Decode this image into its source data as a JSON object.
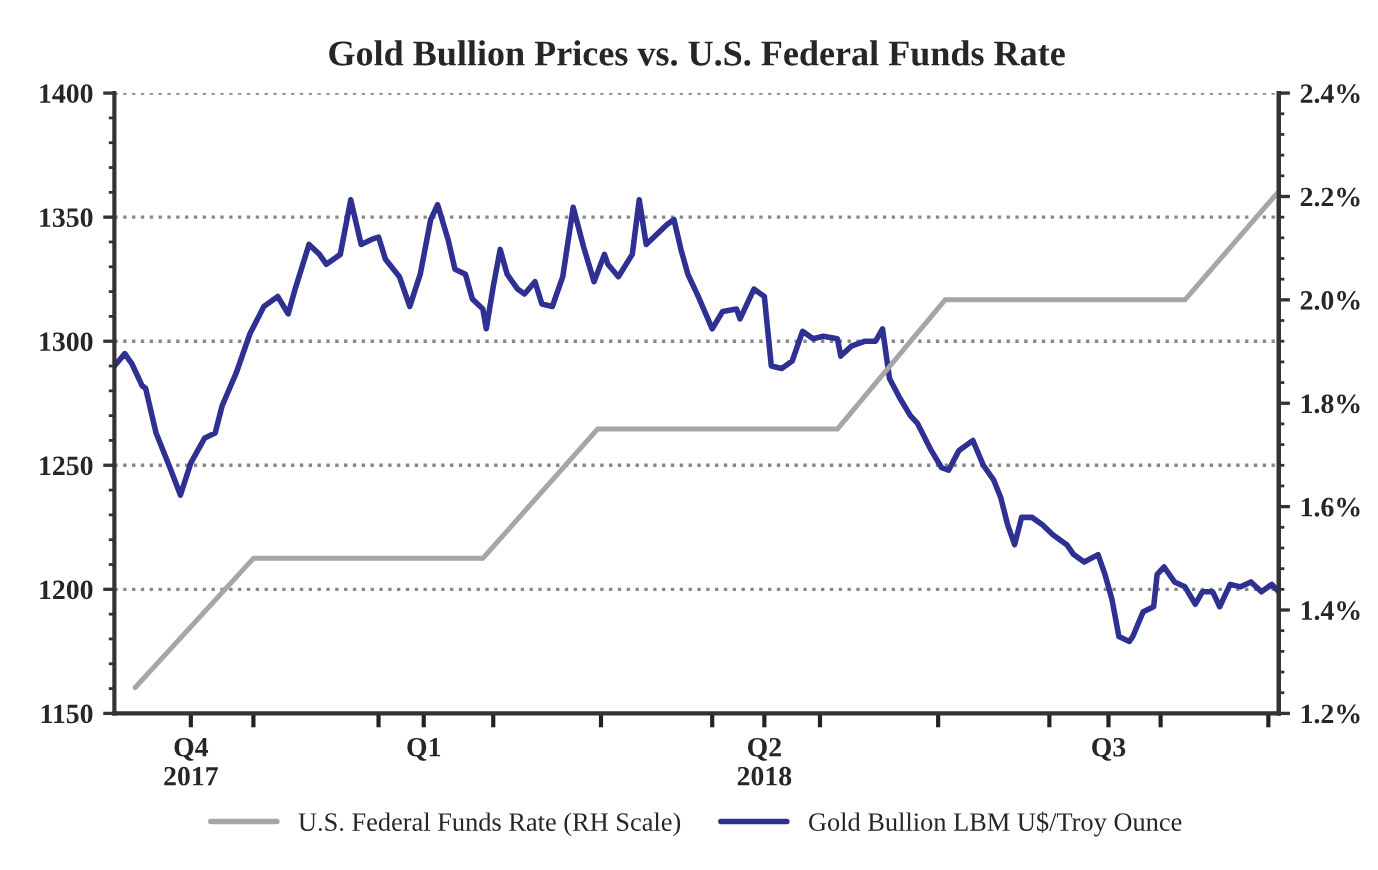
{
  "chart_data": {
    "type": "line",
    "title": "Gold Bullion Prices vs. U.S. Federal Funds Rate",
    "xlim": [
      "2017-10-01",
      "2018-09-01"
    ],
    "xticks": [
      {
        "value": "2017-10-23",
        "label": "Q4\n2017"
      },
      {
        "value": "2017-11-10",
        "label": null
      },
      {
        "value": "2017-12-16",
        "label": null
      },
      {
        "value": "2017-12-29",
        "label": "Q1"
      },
      {
        "value": "2018-01-18",
        "label": null
      },
      {
        "value": "2018-02-18",
        "label": null
      },
      {
        "value": "2018-03-22",
        "label": null
      },
      {
        "value": "2018-04-06",
        "label": "Q2\n2018"
      },
      {
        "value": "2018-04-22",
        "label": null
      },
      {
        "value": "2018-05-26",
        "label": null
      },
      {
        "value": "2018-06-27",
        "label": null
      },
      {
        "value": "2018-07-14",
        "label": "Q3"
      },
      {
        "value": "2018-07-29",
        "label": null
      },
      {
        "value": "2018-08-29",
        "label": null
      }
    ],
    "ylim": [
      1150,
      1400
    ],
    "yticks": [
      1150,
      1200,
      1250,
      1300,
      1350,
      1400
    ],
    "y2lim": [
      1.2,
      2.4
    ],
    "y2ticks": [
      {
        "value": 1.2,
        "label": "1.2%"
      },
      {
        "value": 1.4,
        "label": "1.4%"
      },
      {
        "value": 1.6,
        "label": "1.6%"
      },
      {
        "value": 1.8,
        "label": "1.8%"
      },
      {
        "value": 2.0,
        "label": "2.0%"
      },
      {
        "value": 2.2,
        "label": "2.2%"
      },
      {
        "value": 2.4,
        "label": "2.4%"
      }
    ],
    "grid": "y",
    "legend": "bottom",
    "line_style": "solid",
    "series": [
      {
        "name": "U.S. Federal Funds Rate (RH Scale)",
        "color": "#a6a6a6",
        "axis": "y2",
        "x": [
          "2017-10-07",
          "2017-11-10",
          "2018-01-15",
          "2018-02-17",
          "2018-04-27",
          "2018-05-28",
          "2018-08-05",
          "2018-09-01"
        ],
        "values": [
          1.25,
          1.5,
          1.5,
          1.75,
          1.75,
          2.0,
          2.0,
          2.21
        ]
      },
      {
        "name": "Gold Bullion LBM U$/Troy Ounce",
        "color": "#2e3192",
        "axis": "y",
        "x": [
          "2017-10-01",
          "2017-10-04",
          "2017-10-06",
          "2017-10-09",
          "2017-10-10",
          "2017-10-13",
          "2017-10-17",
          "2017-10-20",
          "2017-10-23",
          "2017-10-27",
          "2017-10-30",
          "2017-11-01",
          "2017-11-05",
          "2017-11-09",
          "2017-11-13",
          "2017-11-17",
          "2017-11-20",
          "2017-11-22",
          "2017-11-26",
          "2017-11-29",
          "2017-12-01",
          "2017-12-05",
          "2017-12-08",
          "2017-12-11",
          "2017-12-14",
          "2017-12-16",
          "2017-12-18",
          "2017-12-22",
          "2017-12-25",
          "2017-12-28",
          "2017-12-31",
          "2018-01-02",
          "2018-01-05",
          "2018-01-07",
          "2018-01-10",
          "2018-01-12",
          "2018-01-15",
          "2018-01-16",
          "2018-01-18",
          "2018-01-20",
          "2018-01-22",
          "2018-01-25",
          "2018-01-27",
          "2018-01-30",
          "2018-02-01",
          "2018-02-04",
          "2018-02-07",
          "2018-02-10",
          "2018-02-13",
          "2018-02-16",
          "2018-02-19",
          "2018-02-20",
          "2018-02-23",
          "2018-02-27",
          "2018-03-01",
          "2018-03-03",
          "2018-03-06",
          "2018-03-09",
          "2018-03-11",
          "2018-03-13",
          "2018-03-15",
          "2018-03-18",
          "2018-03-22",
          "2018-03-25",
          "2018-03-29",
          "2018-03-30",
          "2018-04-03",
          "2018-04-06",
          "2018-04-08",
          "2018-04-11",
          "2018-04-14",
          "2018-04-17",
          "2018-04-20",
          "2018-04-23",
          "2018-04-27",
          "2018-04-28",
          "2018-05-01",
          "2018-05-05",
          "2018-05-08",
          "2018-05-10",
          "2018-05-12",
          "2018-05-15",
          "2018-05-18",
          "2018-05-20",
          "2018-05-24",
          "2018-05-27",
          "2018-05-29",
          "2018-06-01",
          "2018-06-05",
          "2018-06-08",
          "2018-06-11",
          "2018-06-13",
          "2018-06-15",
          "2018-06-17",
          "2018-06-19",
          "2018-06-22",
          "2018-06-25",
          "2018-06-28",
          "2018-07-02",
          "2018-07-04",
          "2018-07-07",
          "2018-07-11",
          "2018-07-13",
          "2018-07-15",
          "2018-07-17",
          "2018-07-20",
          "2018-07-21",
          "2018-07-24",
          "2018-07-27",
          "2018-07-28",
          "2018-07-30",
          "2018-08-02",
          "2018-08-05",
          "2018-08-08",
          "2018-08-10",
          "2018-08-13",
          "2018-08-15",
          "2018-08-18",
          "2018-08-21",
          "2018-08-24",
          "2018-08-27",
          "2018-08-30",
          "2018-09-01"
        ],
        "values": [
          1290,
          1295,
          1291,
          1282,
          1281,
          1263,
          1249,
          1238,
          1251,
          1261,
          1263,
          1274,
          1287,
          1303,
          1314,
          1318,
          1311,
          1321,
          1339,
          1335,
          1331,
          1335,
          1357,
          1339,
          1341,
          1342,
          1333,
          1326,
          1314,
          1327,
          1349,
          1355,
          1341,
          1329,
          1327,
          1317,
          1313,
          1305,
          1322,
          1337,
          1327,
          1321,
          1319,
          1324,
          1315,
          1314,
          1326,
          1354,
          1338,
          1324,
          1335,
          1331,
          1326,
          1335,
          1357,
          1339,
          1343,
          1347,
          1349,
          1337,
          1327,
          1318,
          1305,
          1312,
          1313,
          1309,
          1321,
          1318,
          1290,
          1289,
          1292,
          1304,
          1301,
          1302,
          1301,
          1294,
          1298,
          1300,
          1300,
          1305,
          1285,
          1277,
          1270,
          1267,
          1256,
          1249,
          1248,
          1256,
          1260,
          1250,
          1244,
          1237,
          1226,
          1218,
          1229,
          1229,
          1226,
          1222,
          1218,
          1214,
          1211,
          1214,
          1206,
          1196,
          1181,
          1179,
          1181,
          1191,
          1193,
          1206,
          1209,
          1203,
          1201,
          1194,
          1199,
          1199,
          1193,
          1202,
          1201,
          1203,
          1199,
          1202,
          1199
        ]
      }
    ]
  }
}
